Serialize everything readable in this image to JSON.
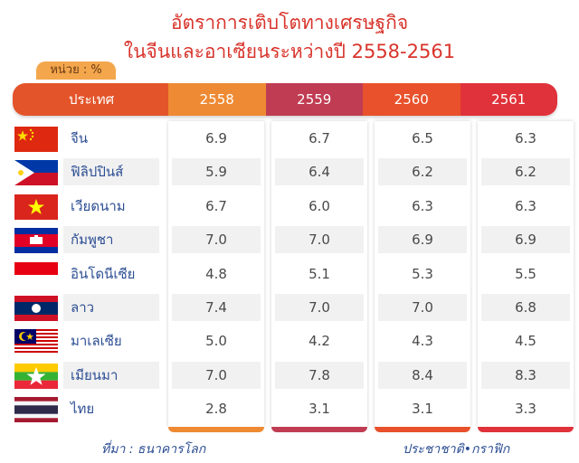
{
  "title_line1": "อัตราการเติบโตทางเศรษฐกิจ",
  "title_line2": "ในจีนและอาเซียนระหว่างปี 2558-2561",
  "unit_label": "หน่วย : %",
  "header": {
    "country_label": "ประเทศ",
    "years": [
      "2558",
      "2559",
      "2560",
      "2561"
    ],
    "year_colors": [
      "#ee8a33",
      "#c03c52",
      "#e8512b",
      "#e0323a"
    ],
    "country_color": "#e3542a"
  },
  "chart_data": {
    "type": "table",
    "title": "อัตราการเติบโตทางเศรษฐกิจ ในจีนและอาเซียนระหว่างปี 2558-2561",
    "unit": "หน่วย : %",
    "columns": [
      "2558",
      "2559",
      "2560",
      "2561"
    ],
    "rows": [
      {
        "country": "จีน",
        "flag": "china-flag-icon",
        "values": [
          "6.9",
          "6.7",
          "6.5",
          "6.3"
        ]
      },
      {
        "country": "ฟิลิปปินส์",
        "flag": "philippines-flag-icon",
        "values": [
          "5.9",
          "6.4",
          "6.2",
          "6.2"
        ]
      },
      {
        "country": "เวียดนาม",
        "flag": "vietnam-flag-icon",
        "values": [
          "6.7",
          "6.0",
          "6.3",
          "6.3"
        ]
      },
      {
        "country": "กัมพูชา",
        "flag": "cambodia-flag-icon",
        "values": [
          "7.0",
          "7.0",
          "6.9",
          "6.9"
        ]
      },
      {
        "country": "อินโดนีเซีย",
        "flag": "indonesia-flag-icon",
        "values": [
          "4.8",
          "5.1",
          "5.3",
          "5.5"
        ]
      },
      {
        "country": "ลาว",
        "flag": "laos-flag-icon",
        "values": [
          "7.4",
          "7.0",
          "7.0",
          "6.8"
        ]
      },
      {
        "country": "มาเลเซีย",
        "flag": "malaysia-flag-icon",
        "values": [
          "5.0",
          "4.2",
          "4.3",
          "4.5"
        ]
      },
      {
        "country": "เมียนมา",
        "flag": "myanmar-flag-icon",
        "values": [
          "7.0",
          "7.8",
          "8.4",
          "8.3"
        ]
      },
      {
        "country": "ไทย",
        "flag": "thailand-flag-icon",
        "values": [
          "2.8",
          "3.1",
          "3.1",
          "3.3"
        ]
      }
    ]
  },
  "footer": {
    "source": "ที่มา : ธนาคารโลก",
    "credit": "ประชาชาติ•กราฟิก"
  }
}
